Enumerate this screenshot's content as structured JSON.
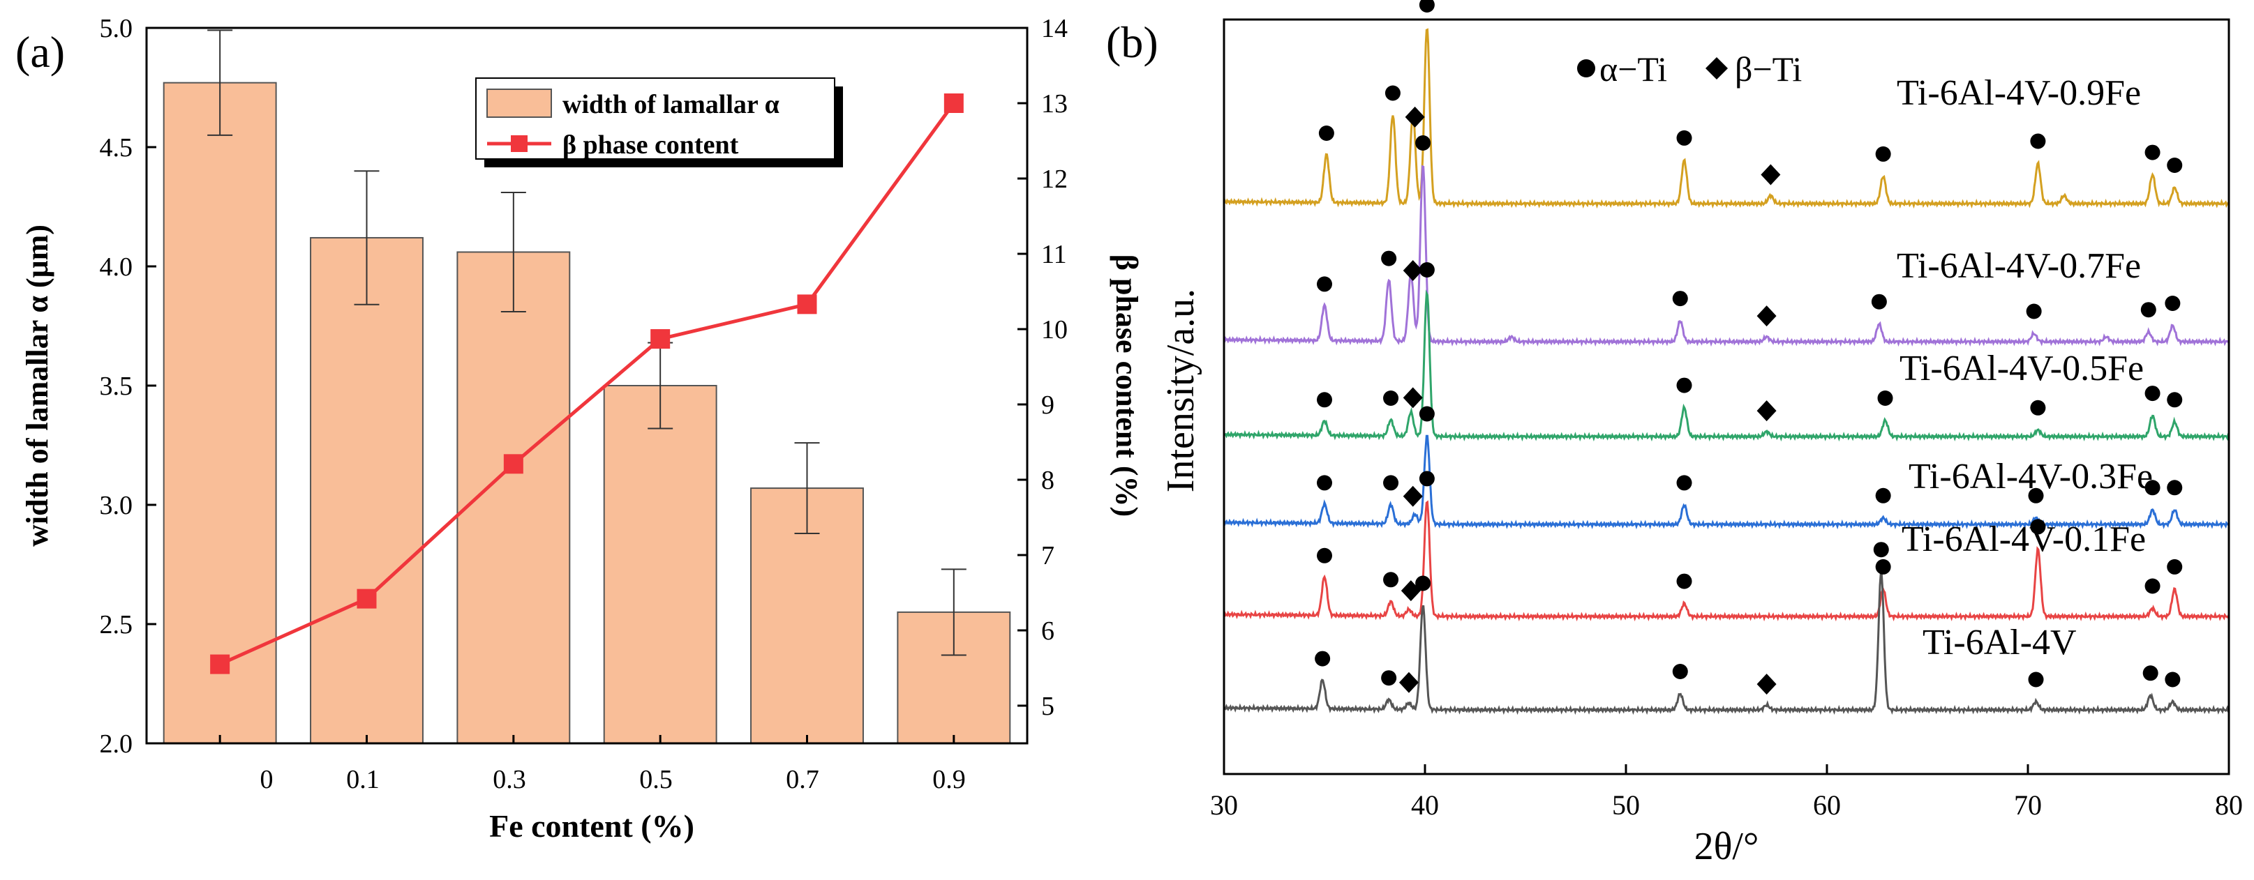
{
  "chart_data": [
    {
      "type": "bar",
      "panel_label": "(a)",
      "categories": [
        "0",
        "0.1",
        "0.3",
        "0.5",
        "0.7",
        "0.9"
      ],
      "xlabel": "Fe content (%)",
      "ylabel_left": "width of lamallar α (μm)",
      "ylabel_right": "β phase content (%)",
      "ylim_left": [
        2.0,
        5.0
      ],
      "ylim_right": [
        4.5,
        14
      ],
      "left_ticks": [
        "2.0",
        "2.5",
        "3.0",
        "3.5",
        "4.0",
        "4.5",
        "5.0"
      ],
      "right_ticks": [
        "5",
        "6",
        "7",
        "8",
        "9",
        "10",
        "11",
        "12",
        "13",
        "14"
      ],
      "series": [
        {
          "name": "width of lamallar α",
          "kind": "bar",
          "axis": "left",
          "values": [
            4.77,
            4.12,
            4.06,
            3.5,
            3.07,
            2.55
          ],
          "errors": [
            0.22,
            0.28,
            0.25,
            0.18,
            0.19,
            0.18
          ],
          "color": "#F9BE98",
          "edge_color": "#555555"
        },
        {
          "name": "β phase content",
          "kind": "line",
          "axis": "right",
          "values": [
            5.55,
            6.42,
            8.21,
            9.87,
            10.33,
            13.0
          ],
          "color": "#F0363C"
        }
      ],
      "legend_position": "top-right"
    },
    {
      "type": "line",
      "panel_label": "(b)",
      "xlabel": "2θ/°",
      "ylabel": "Intensity/a.u.",
      "xlim": [
        30,
        80
      ],
      "x_ticks": [
        "30",
        "40",
        "50",
        "60",
        "70",
        "80"
      ],
      "legend": {
        "alpha": "α−Ti",
        "beta": "β−Ti"
      },
      "traces": [
        {
          "name": "Ti-6Al-4V-0.9Fe",
          "color": "#D4A020",
          "baseline_level": 5,
          "peaks": [
            [
              35.1,
              0.3
            ],
            [
              38.4,
              0.55
            ],
            [
              39.4,
              0.55
            ],
            [
              40.1,
              1.1
            ],
            [
              52.9,
              0.27
            ],
            [
              57.2,
              0.05
            ],
            [
              62.8,
              0.17
            ],
            [
              70.5,
              0.25
            ],
            [
              71.8,
              0.05
            ],
            [
              76.2,
              0.18
            ],
            [
              77.3,
              0.1
            ]
          ],
          "alpha_markers": [
            35.1,
            38.4,
            40.1,
            52.9,
            62.8,
            70.5,
            76.2,
            77.3
          ],
          "beta_markers": [
            39.5,
            57.2
          ]
        },
        {
          "name": "Ti-6Al-4V-0.7Fe",
          "color": "#A072D8",
          "baseline_level": 4,
          "peaks": [
            [
              35.0,
              0.22
            ],
            [
              38.2,
              0.38
            ],
            [
              39.3,
              0.42
            ],
            [
              39.9,
              1.1
            ],
            [
              44.3,
              0.03
            ],
            [
              52.7,
              0.13
            ],
            [
              57.0,
              0.03
            ],
            [
              62.6,
              0.11
            ],
            [
              70.3,
              0.05
            ],
            [
              73.9,
              0.03
            ],
            [
              76.0,
              0.06
            ],
            [
              77.2,
              0.1
            ]
          ],
          "alpha_markers": [
            35.0,
            38.2,
            39.9,
            52.7,
            62.6,
            70.3,
            76.0,
            77.2
          ],
          "beta_markers": [
            39.4,
            57.0
          ]
        },
        {
          "name": "Ti-6Al-4V-0.5Fe",
          "color": "#2FA56A",
          "baseline_level": 3,
          "peaks": [
            [
              35.0,
              0.09
            ],
            [
              38.3,
              0.1
            ],
            [
              39.3,
              0.15
            ],
            [
              40.1,
              0.9
            ],
            [
              52.9,
              0.18
            ],
            [
              57.0,
              0.03
            ],
            [
              62.9,
              0.1
            ],
            [
              70.5,
              0.04
            ],
            [
              76.2,
              0.13
            ],
            [
              77.3,
              0.09
            ]
          ],
          "alpha_markers": [
            35.0,
            38.3,
            40.1,
            52.9,
            62.9,
            70.5,
            76.2,
            77.3
          ],
          "beta_markers": [
            39.4,
            57.0
          ]
        },
        {
          "name": "Ti-6Al-4V-0.3Fe",
          "color": "#2A6FD6",
          "baseline_level": 2,
          "peaks": [
            [
              35.0,
              0.12
            ],
            [
              38.3,
              0.12
            ],
            [
              39.5,
              0.06
            ],
            [
              40.1,
              0.55
            ],
            [
              52.9,
              0.12
            ],
            [
              62.8,
              0.04
            ],
            [
              70.4,
              0.04
            ],
            [
              76.2,
              0.09
            ],
            [
              77.3,
              0.09
            ]
          ],
          "alpha_markers": [
            35.0,
            38.3,
            40.1,
            52.9,
            62.8,
            70.4,
            76.2,
            77.3
          ],
          "beta_markers": [
            39.4
          ]
        },
        {
          "name": "Ti-6Al-4V-0.1Fe",
          "color": "#E84444",
          "baseline_level": 1,
          "peaks": [
            [
              35.0,
              0.24
            ],
            [
              38.3,
              0.09
            ],
            [
              39.2,
              0.04
            ],
            [
              40.1,
              0.72
            ],
            [
              52.9,
              0.08
            ],
            [
              62.8,
              0.17
            ],
            [
              70.5,
              0.42
            ],
            [
              76.2,
              0.05
            ],
            [
              77.3,
              0.17
            ]
          ],
          "alpha_markers": [
            35.0,
            38.3,
            40.1,
            52.9,
            62.8,
            70.5,
            76.2,
            77.3
          ],
          "beta_markers": [
            39.3
          ]
        },
        {
          "name": "Ti-6Al-4V",
          "color": "#555555",
          "baseline_level": 0,
          "peaks": [
            [
              34.9,
              0.18
            ],
            [
              38.2,
              0.06
            ],
            [
              39.2,
              0.04
            ],
            [
              39.9,
              0.65
            ],
            [
              52.7,
              0.1
            ],
            [
              57.0,
              0.03
            ],
            [
              62.7,
              0.86
            ],
            [
              70.4,
              0.05
            ],
            [
              76.1,
              0.09
            ],
            [
              77.2,
              0.05
            ]
          ],
          "alpha_markers": [
            34.9,
            38.2,
            39.9,
            52.7,
            62.7,
            70.4,
            76.1,
            77.2
          ],
          "beta_markers": [
            39.2,
            57.0
          ]
        }
      ]
    }
  ]
}
